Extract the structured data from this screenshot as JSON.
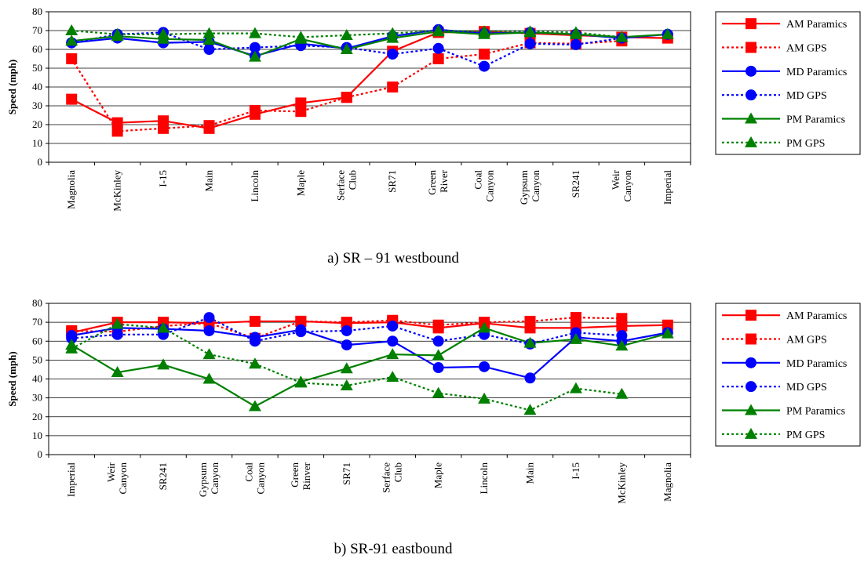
{
  "chart_data": [
    {
      "type": "line",
      "title": "",
      "caption": "a) SR – 91 westbound",
      "xlabel": "",
      "ylabel": "Speed (mph)",
      "ylim": [
        0,
        80
      ],
      "yticks": [
        "0",
        "10",
        "20",
        "30",
        "40",
        "50",
        "60",
        "70",
        "80"
      ],
      "grid": true,
      "legend_position": "right",
      "categories": [
        "Magnolia",
        "McKinley",
        "I-15",
        "Main",
        "Lincoln",
        "Maple",
        "Serface Club",
        "SR71",
        "Green River",
        "Coal Canyon",
        "Gypsum Canyon",
        "SR241",
        "Weir Canyon",
        "Imperial"
      ],
      "series": [
        {
          "name": "AM Paramics",
          "color": "#ff0000",
          "dash": false,
          "marker": "square",
          "values": [
            33.5,
            21,
            22,
            18,
            25.5,
            31.5,
            34.5,
            59,
            69,
            69.5,
            68.5,
            67.5,
            66.5,
            66
          ]
        },
        {
          "name": "AM GPS",
          "color": "#ff0000",
          "dash": true,
          "marker": "square",
          "values": [
            55,
            16.5,
            18,
            19.5,
            27.5,
            27,
            34.5,
            40,
            55,
            57.5,
            63.5,
            63,
            64.5,
            null
          ]
        },
        {
          "name": "MD Paramics",
          "color": "#0000ff",
          "dash": false,
          "marker": "circle",
          "values": [
            63.5,
            66,
            63.5,
            64,
            56.5,
            63,
            60.5,
            67,
            70.5,
            68.5,
            69,
            68,
            66,
            68
          ]
        },
        {
          "name": "MD GPS",
          "color": "#0000ff",
          "dash": true,
          "marker": "circle",
          "values": [
            63.5,
            68,
            69,
            60,
            61,
            62,
            61,
            57.5,
            60.5,
            51,
            63,
            62.5,
            66,
            null
          ]
        },
        {
          "name": "PM Paramics",
          "color": "#008000",
          "dash": false,
          "marker": "triangle",
          "values": [
            64.5,
            67,
            65.5,
            65,
            56,
            65.5,
            60,
            66,
            69.5,
            68,
            69,
            68,
            66.5,
            68
          ]
        },
        {
          "name": "PM GPS",
          "color": "#008000",
          "dash": true,
          "marker": "triangle",
          "values": [
            70,
            68,
            68,
            68.5,
            68.5,
            66.5,
            67.5,
            68.5,
            70,
            69.5,
            69.5,
            69,
            66.5,
            null
          ]
        }
      ]
    },
    {
      "type": "line",
      "title": "",
      "caption": "b) SR-91 eastbound",
      "xlabel": "",
      "ylabel": "Speed (mph)",
      "ylim": [
        0,
        80
      ],
      "yticks": [
        "0",
        "10",
        "20",
        "30",
        "40",
        "50",
        "60",
        "70",
        "80"
      ],
      "grid": true,
      "legend_position": "right",
      "categories": [
        "Imperial",
        "Weir Canyon",
        "SR241",
        "Gypsum Canyon",
        "Coal Canyon",
        "Green Rinver",
        "SR71",
        "Serface Club",
        "Maple",
        "Lincoln",
        "Main",
        "I-15",
        "McKinley",
        "Magnolia"
      ],
      "series": [
        {
          "name": "AM Paramics",
          "color": "#ff0000",
          "dash": false,
          "marker": "square",
          "values": [
            64.5,
            70,
            70,
            69.5,
            70.5,
            70.5,
            69.5,
            70,
            67,
            69.5,
            67,
            67,
            68,
            68.5
          ]
        },
        {
          "name": "AM GPS",
          "color": "#ff0000",
          "dash": true,
          "marker": "square",
          "values": [
            65.5,
            65,
            68,
            69.5,
            61.5,
            70.5,
            70,
            71,
            68.5,
            70,
            70.5,
            72.5,
            72,
            null
          ]
        },
        {
          "name": "MD Paramics",
          "color": "#0000ff",
          "dash": false,
          "marker": "circle",
          "values": [
            63,
            67,
            66.5,
            65.5,
            62,
            66,
            58,
            60,
            46,
            46.5,
            40.5,
            62,
            60,
            64.5
          ]
        },
        {
          "name": "MD GPS",
          "color": "#0000ff",
          "dash": true,
          "marker": "circle",
          "values": [
            61.5,
            63.5,
            63.5,
            72.5,
            60,
            65,
            65.5,
            68,
            60,
            63.5,
            58.5,
            64.5,
            63,
            null
          ]
        },
        {
          "name": "PM Paramics",
          "color": "#008000",
          "dash": false,
          "marker": "triangle",
          "values": [
            58,
            43.5,
            47.5,
            40,
            25.5,
            38.5,
            45.5,
            53,
            52.5,
            67,
            59,
            61,
            57.5,
            64
          ]
        },
        {
          "name": "PM GPS",
          "color": "#008000",
          "dash": true,
          "marker": "triangle",
          "values": [
            56,
            69,
            67,
            53,
            48,
            38,
            36.5,
            41,
            32.5,
            29.5,
            23.5,
            35,
            32,
            null
          ]
        }
      ]
    }
  ]
}
